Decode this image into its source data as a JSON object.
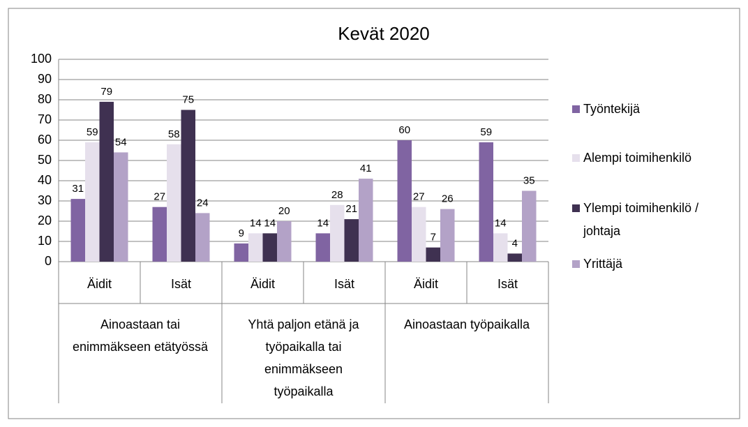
{
  "chart_data": {
    "type": "bar",
    "title": "Kevät 2020",
    "categories": [
      "Äidit",
      "Isät",
      "Äidit",
      "Isät",
      "Äidit",
      "Isät"
    ],
    "groups": [
      "Ainoastaan tai enimmäkseen etätyössä",
      "Yhtä paljon etänä ja työpaikalla tai enimmäkseen työpaikalla",
      "Ainoastaan työpaikalla"
    ],
    "series": [
      {
        "name": "Työntekijä",
        "color": "#8064a2",
        "values": [
          31,
          27,
          9,
          14,
          60,
          59
        ]
      },
      {
        "name": "Alempi toimihenkilö",
        "color": "#e6e0ec",
        "values": [
          59,
          58,
          14,
          28,
          27,
          14
        ]
      },
      {
        "name": "Ylempi toimihenkilö / johtaja",
        "color": "#3f3151",
        "values": [
          79,
          75,
          14,
          21,
          7,
          4
        ]
      },
      {
        "name": "Yrittäjä",
        "color": "#b3a2c7",
        "values": [
          54,
          24,
          20,
          41,
          26,
          35
        ]
      }
    ],
    "ylim": [
      0,
      100
    ],
    "yticks": [
      0,
      10,
      20,
      30,
      40,
      50,
      60,
      70,
      80,
      90,
      100
    ],
    "grid": true,
    "legend": "right"
  }
}
